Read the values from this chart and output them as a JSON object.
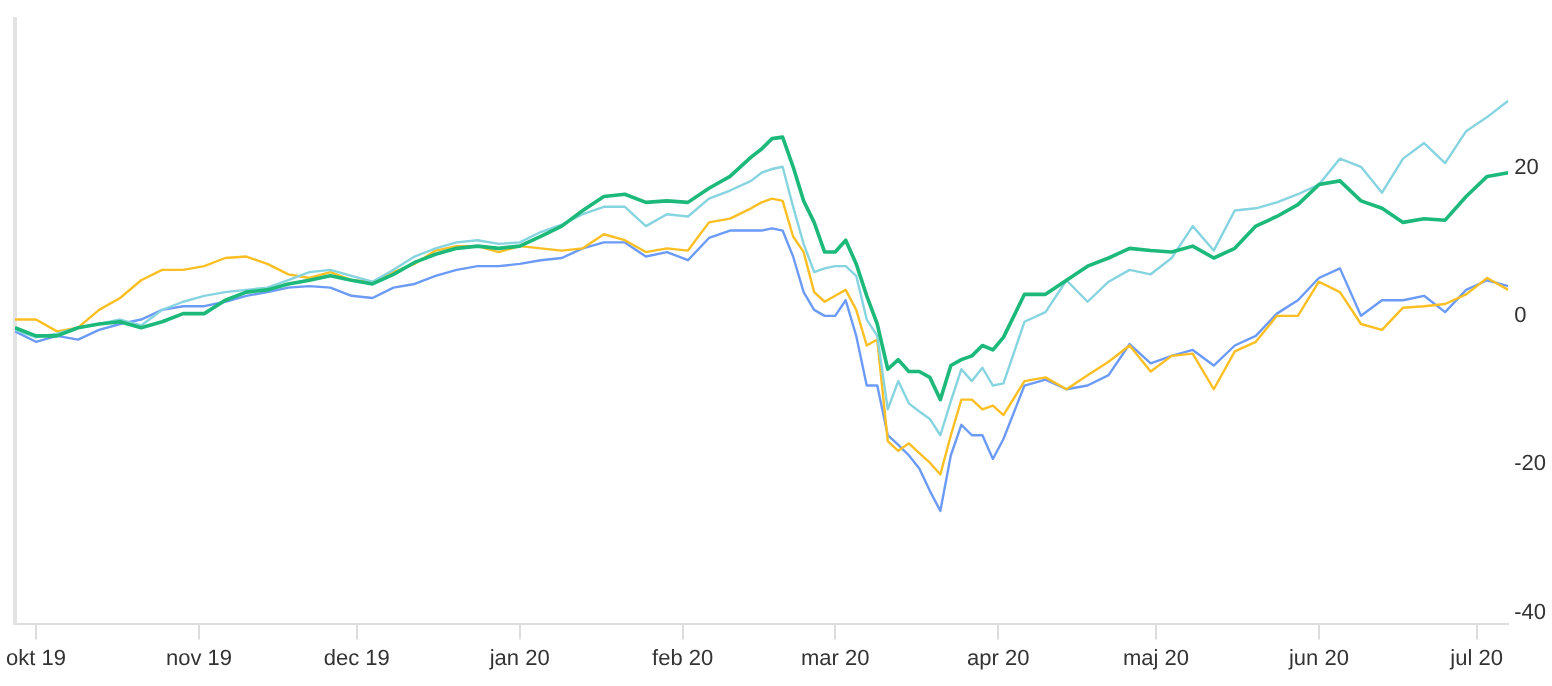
{
  "chart_data": {
    "type": "line",
    "x": [
      "2019-09-27",
      "2019-10-01",
      "2019-10-05",
      "2019-10-09",
      "2019-10-13",
      "2019-10-17",
      "2019-10-21",
      "2019-10-25",
      "2019-10-29",
      "2019-11-02",
      "2019-11-06",
      "2019-11-10",
      "2019-11-14",
      "2019-11-18",
      "2019-11-22",
      "2019-11-26",
      "2019-11-30",
      "2019-12-04",
      "2019-12-08",
      "2019-12-12",
      "2019-12-16",
      "2019-12-20",
      "2019-12-24",
      "2019-12-28",
      "2020-01-01",
      "2020-01-05",
      "2020-01-09",
      "2020-01-13",
      "2020-01-17",
      "2020-01-21",
      "2020-01-25",
      "2020-01-29",
      "2020-02-02",
      "2020-02-06",
      "2020-02-10",
      "2020-02-14",
      "2020-02-16",
      "2020-02-18",
      "2020-02-20",
      "2020-02-22",
      "2020-02-24",
      "2020-02-26",
      "2020-02-28",
      "2020-03-01",
      "2020-03-03",
      "2020-03-05",
      "2020-03-07",
      "2020-03-09",
      "2020-03-11",
      "2020-03-13",
      "2020-03-15",
      "2020-03-17",
      "2020-03-19",
      "2020-03-21",
      "2020-03-23",
      "2020-03-25",
      "2020-03-27",
      "2020-03-29",
      "2020-03-31",
      "2020-04-02",
      "2020-04-06",
      "2020-04-10",
      "2020-04-14",
      "2020-04-18",
      "2020-04-22",
      "2020-04-26",
      "2020-04-30",
      "2020-05-04",
      "2020-05-08",
      "2020-05-12",
      "2020-05-16",
      "2020-05-20",
      "2020-05-24",
      "2020-05-28",
      "2020-06-01",
      "2020-06-05",
      "2020-06-09",
      "2020-06-13",
      "2020-06-17",
      "2020-06-21",
      "2020-06-25",
      "2020-06-29",
      "2020-07-03",
      "2020-07-07"
    ],
    "series": [
      {
        "color": "#1db97a",
        "values": [
          -1.6,
          -2.7,
          -2.7,
          -1.6,
          -1.1,
          -0.8,
          -1.6,
          -0.8,
          0.3,
          0.3,
          2.1,
          3.2,
          3.5,
          4.3,
          4.8,
          5.4,
          4.8,
          4.3,
          5.6,
          7.2,
          8.3,
          9.1,
          9.4,
          9.1,
          9.4,
          10.7,
          12.1,
          14.2,
          16.1,
          16.4,
          15.3,
          15.5,
          15.3,
          17.2,
          18.8,
          21.4,
          22.5,
          23.9,
          24.1,
          20.1,
          15.5,
          12.6,
          8.6,
          8.6,
          10.2,
          7.0,
          2.7,
          -1.1,
          -7.2,
          -5.9,
          -7.5,
          -7.5,
          -8.3,
          -11.3,
          -6.7,
          -5.9,
          -5.4,
          -4.0,
          -4.6,
          -2.9,
          2.9,
          2.9,
          4.8,
          6.7,
          7.8,
          9.1,
          8.8,
          8.6,
          9.4,
          7.8,
          9.1,
          12.1,
          13.4,
          15.0,
          17.7,
          18.2,
          15.5,
          14.5,
          12.6,
          13.1,
          12.9,
          16.1,
          18.8,
          19.3
        ]
      },
      {
        "color": "#86d4e0",
        "values": [
          -1.9,
          -2.9,
          -2.4,
          -1.6,
          -1.1,
          -0.5,
          -1.3,
          0.8,
          1.9,
          2.7,
          3.2,
          3.5,
          3.8,
          4.8,
          5.9,
          6.2,
          5.4,
          4.6,
          6.2,
          8.0,
          9.1,
          9.9,
          10.2,
          9.7,
          9.9,
          11.3,
          12.3,
          13.7,
          14.7,
          14.7,
          12.1,
          13.7,
          13.4,
          15.8,
          16.9,
          18.2,
          19.3,
          19.8,
          20.1,
          14.7,
          9.7,
          5.9,
          6.4,
          6.7,
          6.7,
          5.4,
          -0.5,
          -2.7,
          -12.6,
          -8.8,
          -11.8,
          -12.9,
          -13.9,
          -16.1,
          -11.5,
          -7.2,
          -8.8,
          -7.0,
          -9.4,
          -9.1,
          -0.8,
          0.5,
          4.8,
          1.9,
          4.6,
          6.2,
          5.6,
          7.8,
          12.1,
          8.8,
          14.2,
          14.5,
          15.3,
          16.4,
          17.7,
          21.2,
          20.1,
          16.6,
          21.2,
          23.3,
          20.6,
          24.9,
          26.8,
          29.0
        ]
      },
      {
        "color": "#fbbf24",
        "values": [
          -0.5,
          -0.5,
          -2.1,
          -1.6,
          0.8,
          2.4,
          4.8,
          6.2,
          6.2,
          6.7,
          7.8,
          8.0,
          7.0,
          5.6,
          5.1,
          5.9,
          4.8,
          4.6,
          5.9,
          7.0,
          8.8,
          9.4,
          9.4,
          8.6,
          9.4,
          9.1,
          8.8,
          9.1,
          11.0,
          10.2,
          8.6,
          9.1,
          8.8,
          12.6,
          13.1,
          14.5,
          15.3,
          15.8,
          15.5,
          10.7,
          8.6,
          3.2,
          1.9,
          2.7,
          3.5,
          0.8,
          -4.0,
          -3.2,
          -16.9,
          -18.2,
          -17.2,
          -18.5,
          -19.8,
          -21.4,
          -16.1,
          -11.3,
          -11.3,
          -12.6,
          -12.1,
          -13.4,
          -8.8,
          -8.3,
          -9.9,
          -8.0,
          -6.2,
          -4.0,
          -7.5,
          -5.4,
          -5.1,
          -9.9,
          -4.8,
          -3.5,
          0.0,
          0.0,
          4.6,
          3.2,
          -1.1,
          -1.9,
          1.1,
          1.3,
          1.6,
          2.9,
          5.1,
          3.5
        ]
      },
      {
        "color": "#6b9bf7",
        "values": [
          -2.1,
          -3.5,
          -2.7,
          -3.2,
          -1.9,
          -1.1,
          -0.5,
          0.8,
          1.3,
          1.3,
          1.9,
          2.7,
          3.2,
          3.8,
          4.0,
          3.8,
          2.7,
          2.4,
          3.8,
          4.3,
          5.4,
          6.2,
          6.7,
          6.7,
          7.0,
          7.5,
          7.8,
          9.1,
          9.9,
          9.9,
          8.0,
          8.6,
          7.5,
          10.5,
          11.5,
          11.5,
          11.5,
          11.8,
          11.5,
          8.0,
          3.2,
          0.8,
          0.0,
          0.0,
          2.1,
          -2.7,
          -9.4,
          -9.4,
          -16.1,
          -17.4,
          -18.8,
          -20.6,
          -23.6,
          -26.3,
          -18.8,
          -14.7,
          -16.1,
          -16.1,
          -19.3,
          -16.6,
          -9.4,
          -8.6,
          -9.9,
          -9.4,
          -8.0,
          -3.8,
          -6.4,
          -5.4,
          -4.6,
          -6.7,
          -4.0,
          -2.7,
          0.3,
          2.1,
          5.1,
          6.4,
          0.0,
          2.1,
          2.1,
          2.7,
          0.5,
          3.5,
          4.8,
          4.0
        ]
      }
    ],
    "xlim": [
      "2019-09-27",
      "2020-07-07"
    ],
    "xticks": [
      {
        "value": "2019-10-01",
        "label": "okt 19"
      },
      {
        "value": "2019-11-01",
        "label": "nov 19"
      },
      {
        "value": "2019-12-01",
        "label": "dec 19"
      },
      {
        "value": "2020-01-01",
        "label": "jan 20"
      },
      {
        "value": "2020-02-01",
        "label": "feb 20"
      },
      {
        "value": "2020-03-01",
        "label": "mar 20"
      },
      {
        "value": "2020-04-01",
        "label": "apr 20"
      },
      {
        "value": "2020-05-01",
        "label": "maj 20"
      },
      {
        "value": "2020-06-01",
        "label": "jun 20"
      },
      {
        "value": "2020-07-01",
        "label": "jul 20"
      }
    ],
    "ylim": [
      -41.5,
      40
    ],
    "yticks": [
      -40,
      -20,
      0,
      20
    ],
    "grid": false,
    "legend": false,
    "marker": "none",
    "line_style": "solid"
  }
}
